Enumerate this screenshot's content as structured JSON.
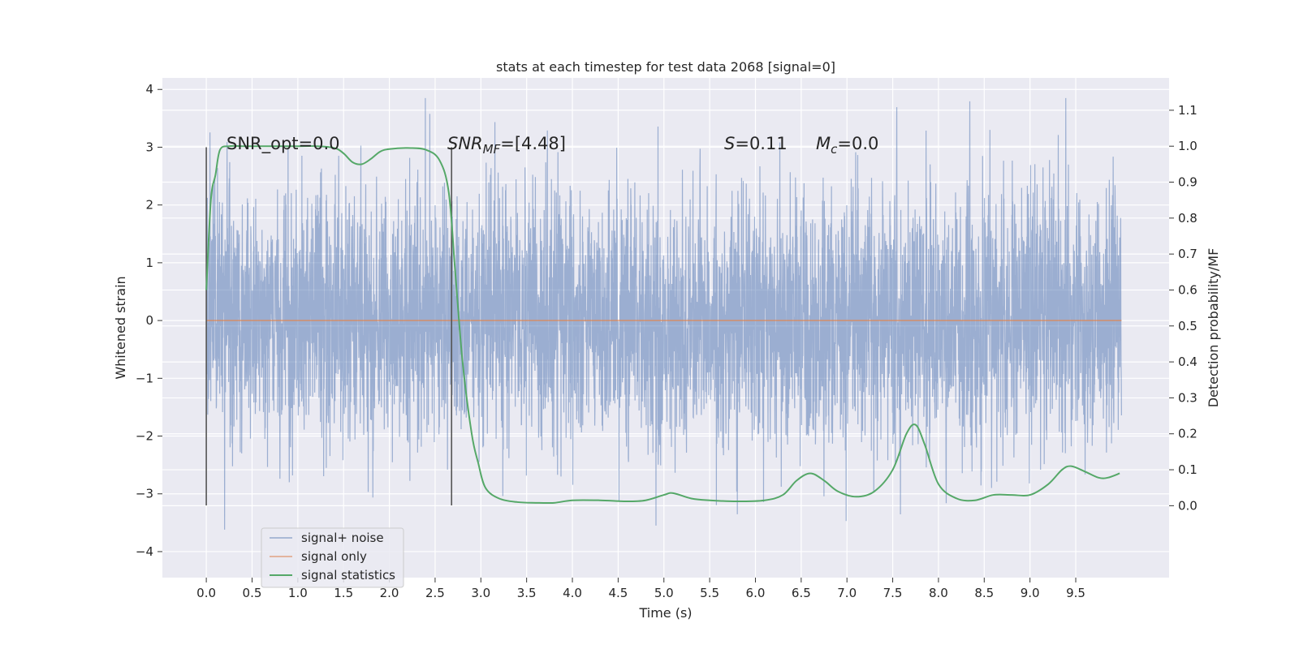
{
  "chart_data": {
    "type": "line",
    "title": "stats at each timestep for test data 2068 [signal=0]",
    "xlabel": "Time (s)",
    "ylabel_left": "Whitened strain",
    "ylabel_right": "Detection probability/MF",
    "xlim": [
      -0.48,
      10.52
    ],
    "ylim_left": [
      -4.45,
      4.2
    ],
    "ylim_right": [
      -0.2,
      1.19
    ],
    "xticks": [
      "0.0",
      "0.5",
      "1.0",
      "1.5",
      "2.0",
      "2.5",
      "3.0",
      "3.5",
      "4.0",
      "4.5",
      "5.0",
      "5.5",
      "6.0",
      "6.5",
      "7.0",
      "7.5",
      "8.0",
      "8.5",
      "9.0",
      "9.5"
    ],
    "yticks_left": [
      "−4",
      "−3",
      "−2",
      "−1",
      "0",
      "1",
      "2",
      "3",
      "4"
    ],
    "yticks_right": [
      "0.0",
      "0.1",
      "0.2",
      "0.3",
      "0.4",
      "0.5",
      "0.6",
      "0.7",
      "0.8",
      "0.9",
      "1.0",
      "1.1"
    ],
    "grid": true,
    "legend_position": "lower-left",
    "annotations": {
      "snr_opt": "SNR_opt=0.0",
      "snr_mf_base": "SNR",
      "snr_mf_sub": "MF",
      "snr_mf_value": "=[4.48]",
      "s_name": "S",
      "s_value": "=0.11",
      "mc_base": "M",
      "mc_sub": "c",
      "mc_value": "=0.0"
    },
    "vertical_markers": [
      {
        "x": 0.0,
        "y_range": [
          -3.2,
          3.0
        ]
      },
      {
        "x": 2.68,
        "y_range": [
          -3.2,
          3.0
        ]
      }
    ],
    "series": [
      {
        "name": "signal+ noise",
        "color": "#4c72b0",
        "kind": "noise",
        "x_range": [
          0.0,
          10.0
        ],
        "approx_band": [
          -2.0,
          2.0
        ],
        "approx_extremes": [
          -4.05,
          3.85
        ]
      },
      {
        "name": "signal only",
        "color": "#dd8452",
        "x": [
          0.0,
          10.0
        ],
        "y": [
          0.0,
          0.0
        ]
      },
      {
        "name": "signal statistics",
        "color": "#55a868",
        "axis": "right",
        "x": [
          0.0,
          0.05,
          0.1,
          0.15,
          0.25,
          0.4,
          0.6,
          0.8,
          1.0,
          1.2,
          1.4,
          1.5,
          1.6,
          1.7,
          1.8,
          1.9,
          2.0,
          2.2,
          2.4,
          2.55,
          2.65,
          2.72,
          2.8,
          2.9,
          2.97,
          3.05,
          3.2,
          3.4,
          3.6,
          3.8,
          4.0,
          4.3,
          4.6,
          4.8,
          5.0,
          5.1,
          5.3,
          5.5,
          5.8,
          6.1,
          6.3,
          6.45,
          6.6,
          6.75,
          6.9,
          7.1,
          7.3,
          7.5,
          7.65,
          7.75,
          7.85,
          8.0,
          8.2,
          8.4,
          8.6,
          8.8,
          9.0,
          9.2,
          9.35,
          9.45,
          9.6,
          9.75,
          9.85,
          9.98
        ],
        "y": [
          0.6,
          0.85,
          0.92,
          0.99,
          1.0,
          1.0,
          1.0,
          1.0,
          1.0,
          1.0,
          0.995,
          0.98,
          0.955,
          0.95,
          0.965,
          0.985,
          0.992,
          0.995,
          0.99,
          0.96,
          0.87,
          0.65,
          0.4,
          0.2,
          0.12,
          0.05,
          0.02,
          0.01,
          0.008,
          0.008,
          0.015,
          0.015,
          0.012,
          0.015,
          0.03,
          0.035,
          0.02,
          0.015,
          0.012,
          0.015,
          0.03,
          0.07,
          0.09,
          0.07,
          0.04,
          0.025,
          0.04,
          0.1,
          0.2,
          0.225,
          0.17,
          0.06,
          0.02,
          0.015,
          0.03,
          0.03,
          0.03,
          0.06,
          0.1,
          0.11,
          0.095,
          0.078,
          0.078,
          0.09
        ]
      }
    ]
  }
}
